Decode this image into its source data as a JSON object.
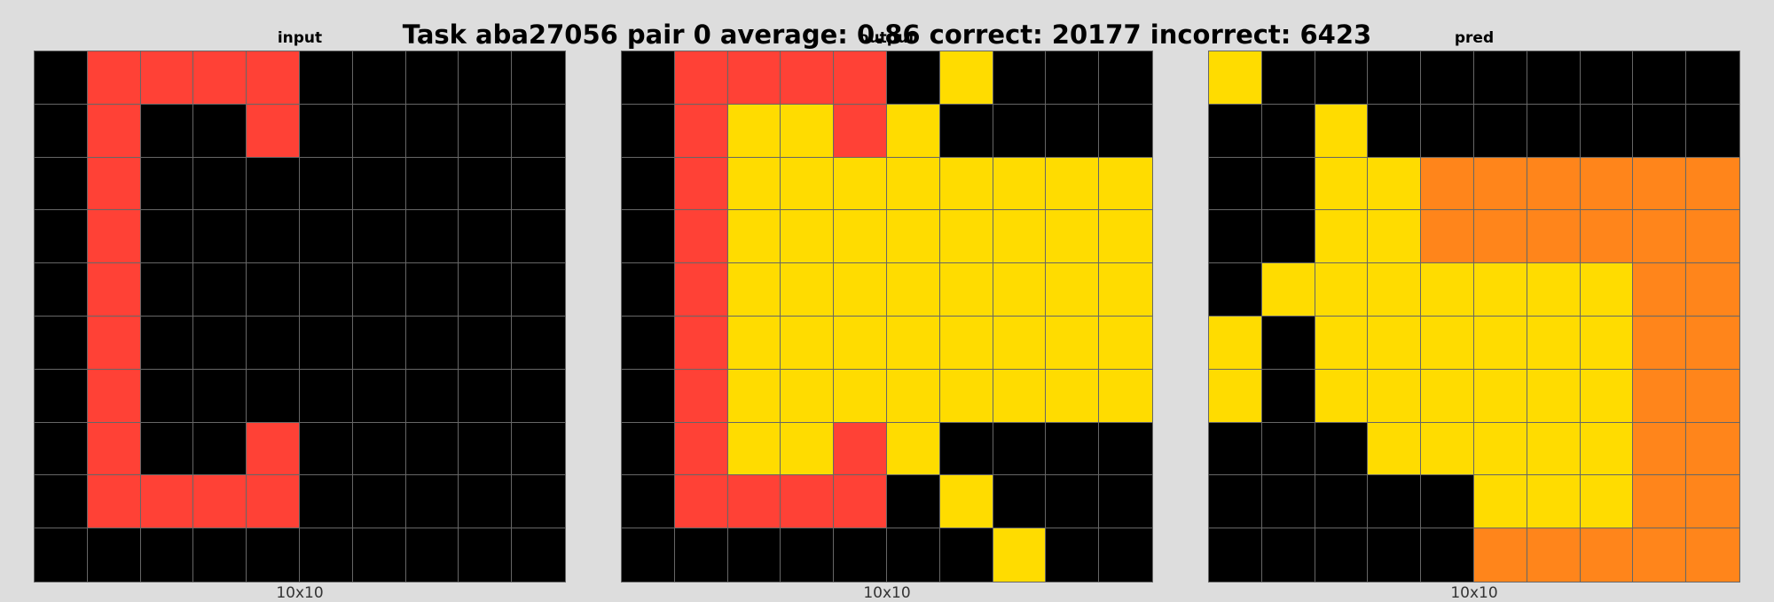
{
  "title": "Task aba27056 pair 0 average: 0.86 correct: 20177 incorrect: 6423",
  "palette": {
    "0": "#000000",
    "2": "#ff4136",
    "4": "#ffdc00",
    "7": "#ff851b"
  },
  "panels": [
    {
      "label": "input",
      "dims": "10x10",
      "grid": [
        [
          0,
          2,
          2,
          2,
          2,
          0,
          0,
          0,
          0,
          0
        ],
        [
          0,
          2,
          0,
          0,
          2,
          0,
          0,
          0,
          0,
          0
        ],
        [
          0,
          2,
          0,
          0,
          0,
          0,
          0,
          0,
          0,
          0
        ],
        [
          0,
          2,
          0,
          0,
          0,
          0,
          0,
          0,
          0,
          0
        ],
        [
          0,
          2,
          0,
          0,
          0,
          0,
          0,
          0,
          0,
          0
        ],
        [
          0,
          2,
          0,
          0,
          0,
          0,
          0,
          0,
          0,
          0
        ],
        [
          0,
          2,
          0,
          0,
          0,
          0,
          0,
          0,
          0,
          0
        ],
        [
          0,
          2,
          0,
          0,
          2,
          0,
          0,
          0,
          0,
          0
        ],
        [
          0,
          2,
          2,
          2,
          2,
          0,
          0,
          0,
          0,
          0
        ],
        [
          0,
          0,
          0,
          0,
          0,
          0,
          0,
          0,
          0,
          0
        ]
      ]
    },
    {
      "label": "output",
      "dims": "10x10",
      "grid": [
        [
          0,
          2,
          2,
          2,
          2,
          0,
          4,
          0,
          0,
          0
        ],
        [
          0,
          2,
          4,
          4,
          2,
          4,
          0,
          0,
          0,
          0
        ],
        [
          0,
          2,
          4,
          4,
          4,
          4,
          4,
          4,
          4,
          4
        ],
        [
          0,
          2,
          4,
          4,
          4,
          4,
          4,
          4,
          4,
          4
        ],
        [
          0,
          2,
          4,
          4,
          4,
          4,
          4,
          4,
          4,
          4
        ],
        [
          0,
          2,
          4,
          4,
          4,
          4,
          4,
          4,
          4,
          4
        ],
        [
          0,
          2,
          4,
          4,
          4,
          4,
          4,
          4,
          4,
          4
        ],
        [
          0,
          2,
          4,
          4,
          2,
          4,
          0,
          0,
          0,
          0
        ],
        [
          0,
          2,
          2,
          2,
          2,
          0,
          4,
          0,
          0,
          0
        ],
        [
          0,
          0,
          0,
          0,
          0,
          0,
          0,
          4,
          0,
          0
        ]
      ]
    },
    {
      "label": "pred",
      "dims": "10x10",
      "grid": [
        [
          4,
          0,
          0,
          0,
          0,
          0,
          0,
          0,
          0,
          0
        ],
        [
          0,
          0,
          4,
          0,
          0,
          0,
          0,
          0,
          0,
          0
        ],
        [
          0,
          0,
          4,
          4,
          7,
          7,
          7,
          7,
          7,
          7
        ],
        [
          0,
          0,
          4,
          4,
          7,
          7,
          7,
          7,
          7,
          7
        ],
        [
          0,
          4,
          4,
          4,
          4,
          4,
          4,
          4,
          7,
          7
        ],
        [
          4,
          0,
          4,
          4,
          4,
          4,
          4,
          4,
          7,
          7
        ],
        [
          4,
          0,
          4,
          4,
          4,
          4,
          4,
          4,
          7,
          7
        ],
        [
          0,
          0,
          0,
          4,
          4,
          4,
          4,
          4,
          7,
          7
        ],
        [
          0,
          0,
          0,
          0,
          0,
          4,
          4,
          4,
          7,
          7
        ],
        [
          0,
          0,
          0,
          0,
          0,
          7,
          7,
          7,
          7,
          7
        ]
      ]
    }
  ]
}
